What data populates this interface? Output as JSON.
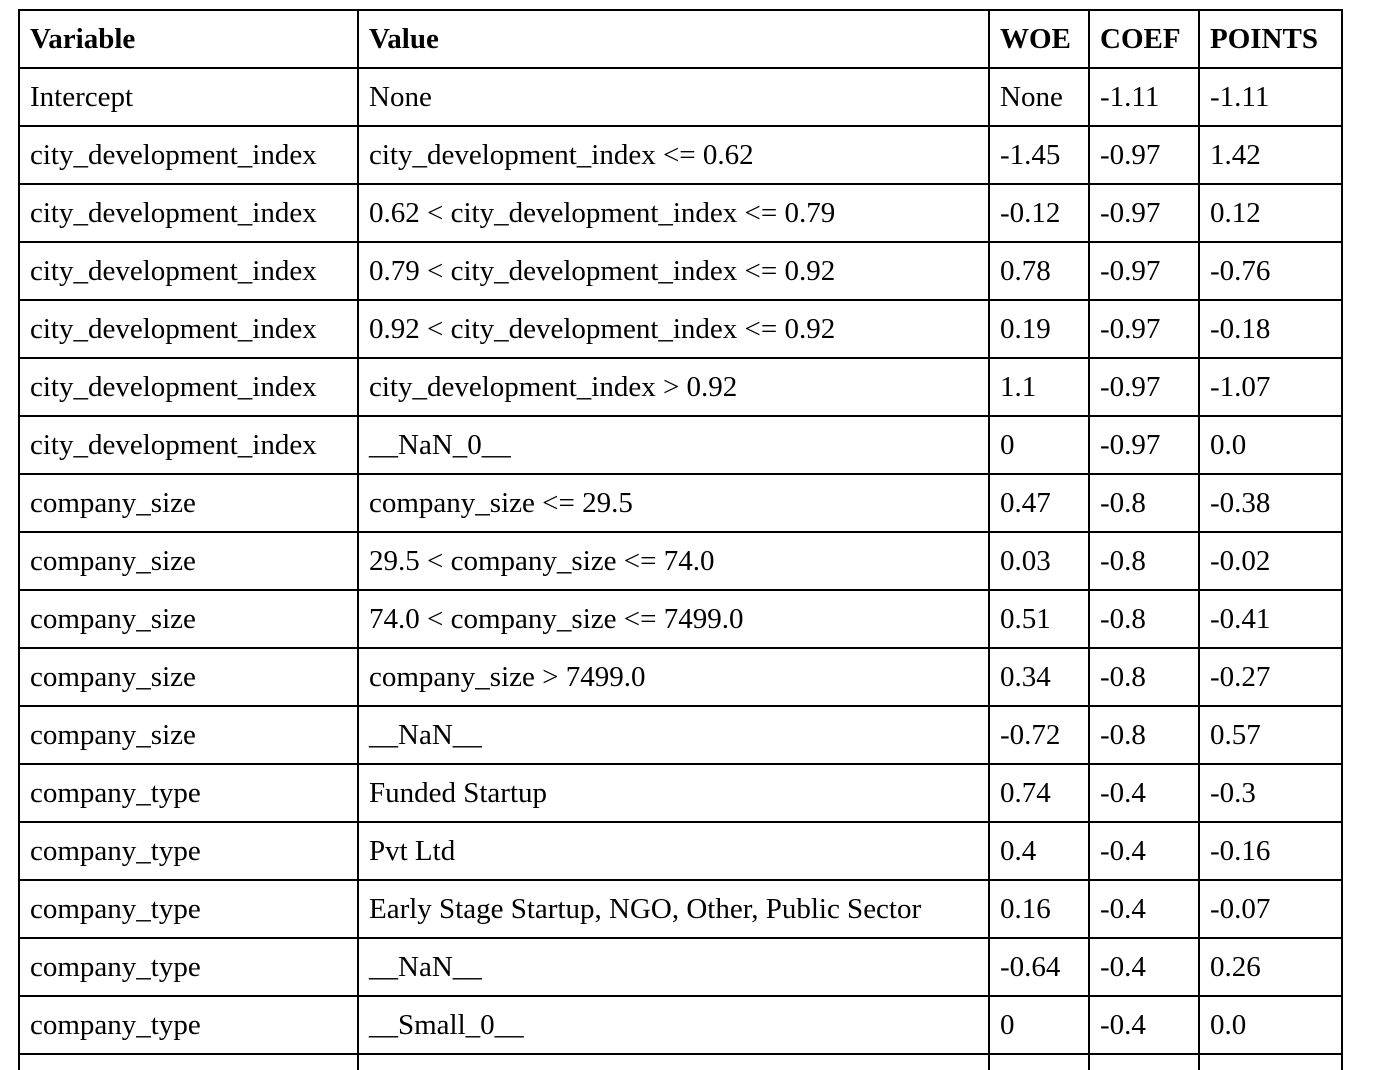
{
  "table": {
    "headers": [
      "Variable",
      "Value",
      "WOE",
      "COEF",
      "POINTS"
    ],
    "rows": [
      [
        "Intercept",
        "None",
        "None",
        "-1.11",
        "-1.11"
      ],
      [
        "city_development_index",
        "city_development_index <= 0.62",
        "-1.45",
        "-0.97",
        "1.42"
      ],
      [
        "city_development_index",
        "0.62 < city_development_index <= 0.79",
        "-0.12",
        "-0.97",
        "0.12"
      ],
      [
        "city_development_index",
        "0.79 < city_development_index <= 0.92",
        "0.78",
        "-0.97",
        "-0.76"
      ],
      [
        "city_development_index",
        "0.92 < city_development_index <= 0.92",
        "0.19",
        "-0.97",
        "-0.18"
      ],
      [
        "city_development_index",
        "city_development_index > 0.92",
        "1.1",
        "-0.97",
        "-1.07"
      ],
      [
        "city_development_index",
        "__NaN_0__",
        "0",
        "-0.97",
        "0.0"
      ],
      [
        "company_size",
        "company_size <= 29.5",
        "0.47",
        "-0.8",
        "-0.38"
      ],
      [
        "company_size",
        "29.5 < company_size <= 74.0",
        "0.03",
        "-0.8",
        "-0.02"
      ],
      [
        "company_size",
        "74.0 < company_size <= 7499.0",
        "0.51",
        "-0.8",
        "-0.41"
      ],
      [
        "company_size",
        "company_size > 7499.0",
        "0.34",
        "-0.8",
        "-0.27"
      ],
      [
        "company_size",
        "__NaN__",
        "-0.72",
        "-0.8",
        "0.57"
      ],
      [
        "company_type",
        "Funded Startup",
        "0.74",
        "-0.4",
        "-0.3"
      ],
      [
        "company_type",
        "Pvt Ltd",
        "0.4",
        "-0.4",
        "-0.16"
      ],
      [
        "company_type",
        "Early Stage Startup, NGO, Other, Public Sector",
        "0.16",
        "-0.4",
        "-0.07"
      ],
      [
        "company_type",
        "__NaN__",
        "-0.64",
        "-0.4",
        "0.26"
      ],
      [
        "company_type",
        "__Small_0__",
        "0",
        "-0.4",
        "0.0"
      ],
      [
        "",
        "",
        "",
        "",
        ""
      ]
    ]
  }
}
